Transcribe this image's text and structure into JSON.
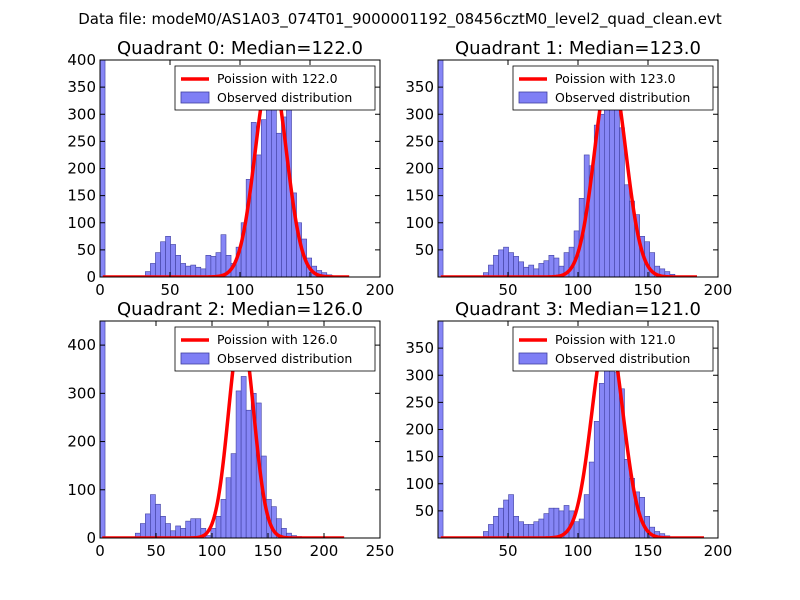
{
  "figure": {
    "suptitle": "Data file: modeM0/AS1A03_074T01_9000001192_08456cztM0_level2_quad_clean.evt"
  },
  "chart_data": [
    {
      "type": "bar",
      "title": "Quadrant 0: Median=122.0",
      "xlim": [
        0,
        200
      ],
      "ylim": [
        0,
        400
      ],
      "xticks": [
        0,
        50,
        100,
        150,
        200
      ],
      "yticks": [
        0,
        50,
        100,
        150,
        200,
        250,
        300,
        350,
        400
      ],
      "bin_width": 3.6,
      "histogram": {
        "name": "Observed distribution",
        "color": "#7f7ff5",
        "x_start": [
          0,
          32.4,
          36,
          39.6,
          43.2,
          46.8,
          50.4,
          54,
          57.6,
          61.2,
          64.8,
          68.4,
          72,
          75.6,
          79.2,
          82.8,
          86.4,
          90,
          93.6,
          97.2,
          100.8,
          104.4,
          108,
          111.6,
          115.2,
          118.8,
          122.4,
          126,
          129.6,
          133.2,
          136.8,
          140.4,
          144,
          147.6,
          151.2,
          154.8,
          158.4,
          162,
          165.6
        ],
        "counts": [
          400,
          10,
          25,
          45,
          65,
          75,
          60,
          40,
          25,
          20,
          22,
          18,
          15,
          40,
          38,
          45,
          78,
          40,
          25,
          55,
          100,
          180,
          285,
          225,
          290,
          315,
          310,
          265,
          295,
          310,
          155,
          100,
          70,
          35,
          20,
          12,
          8,
          4,
          2
        ]
      },
      "curve": {
        "name": "Poission with 122.0",
        "mean": 122.0,
        "peak": 385,
        "x_range": [
          2,
          178
        ],
        "color": "#ff0000"
      }
    },
    {
      "type": "bar",
      "title": "Quadrant 1: Median=123.0",
      "xlim": [
        0,
        200
      ],
      "ylim": [
        0,
        400
      ],
      "xticks": [
        50,
        100,
        150,
        200
      ],
      "yticks": [
        50,
        100,
        150,
        200,
        250,
        300,
        350
      ],
      "bin_width": 3.6,
      "histogram": {
        "name": "Observed distribution",
        "color": "#7f7ff5",
        "x_start": [
          0,
          32.4,
          36,
          39.6,
          43.2,
          46.8,
          50.4,
          54,
          57.6,
          61.2,
          64.8,
          68.4,
          72,
          75.6,
          79.2,
          82.8,
          86.4,
          90,
          93.6,
          97.2,
          100.8,
          104.4,
          108,
          111.6,
          115.2,
          118.8,
          122.4,
          126,
          129.6,
          133.2,
          136.8,
          140.4,
          144,
          147.6,
          151.2,
          154.8,
          158.4,
          162,
          165.6
        ],
        "counts": [
          400,
          8,
          22,
          40,
          50,
          55,
          45,
          38,
          28,
          18,
          22,
          15,
          25,
          30,
          40,
          35,
          20,
          45,
          55,
          85,
          145,
          225,
          205,
          280,
          300,
          320,
          340,
          370,
          275,
          170,
          140,
          115,
          75,
          65,
          45,
          20,
          15,
          10,
          5
        ]
      },
      "curve": {
        "name": "Poission with 123.0",
        "mean": 123.0,
        "peak": 385,
        "x_range": [
          2,
          185
        ],
        "color": "#ff0000"
      }
    },
    {
      "type": "bar",
      "title": "Quadrant 2: Median=126.0",
      "xlim": [
        0,
        250
      ],
      "ylim": [
        0,
        450
      ],
      "xticks": [
        0,
        50,
        100,
        150,
        200,
        250
      ],
      "yticks": [
        0,
        100,
        200,
        300,
        400
      ],
      "bin_width": 4.5,
      "histogram": {
        "name": "Observed distribution",
        "color": "#7f7ff5",
        "x_start": [
          0,
          31.5,
          36,
          40.5,
          45,
          49.5,
          54,
          58.5,
          63,
          67.5,
          72,
          76.5,
          81,
          85.5,
          90,
          94.5,
          99,
          103.5,
          108,
          112.5,
          117,
          121.5,
          126,
          130.5,
          135,
          139.5,
          144,
          148.5,
          153,
          157.5,
          162,
          166.5,
          171,
          175.5,
          180
        ],
        "counts": [
          450,
          10,
          30,
          50,
          90,
          70,
          45,
          30,
          15,
          25,
          20,
          35,
          40,
          40,
          20,
          5,
          20,
          45,
          80,
          125,
          175,
          305,
          335,
          265,
          300,
          280,
          170,
          80,
          65,
          40,
          20,
          10,
          5,
          3,
          2
        ]
      },
      "curve": {
        "name": "Poission with 126.0",
        "mean": 126.0,
        "peak": 432,
        "x_range": [
          2,
          218
        ],
        "color": "#ff0000"
      }
    },
    {
      "type": "bar",
      "title": "Quadrant 3: Median=121.0",
      "xlim": [
        0,
        200
      ],
      "ylim": [
        0,
        400
      ],
      "xticks": [
        50,
        100,
        150,
        200
      ],
      "yticks": [
        50,
        100,
        150,
        200,
        250,
        300,
        350
      ],
      "bin_width": 3.6,
      "histogram": {
        "name": "Observed distribution",
        "color": "#7f7ff5",
        "x_start": [
          0,
          32.4,
          36,
          39.6,
          43.2,
          46.8,
          50.4,
          54,
          57.6,
          61.2,
          64.8,
          68.4,
          72,
          75.6,
          79.2,
          82.8,
          86.4,
          90,
          93.6,
          97.2,
          100.8,
          104.4,
          108,
          111.6,
          115.2,
          118.8,
          122.4,
          126,
          129.6,
          133.2,
          136.8,
          140.4,
          144,
          147.6,
          151.2,
          154.8,
          158.4,
          162,
          165.6
        ],
        "counts": [
          400,
          12,
          25,
          40,
          55,
          70,
          80,
          40,
          30,
          25,
          25,
          30,
          35,
          45,
          55,
          55,
          50,
          60,
          50,
          30,
          35,
          80,
          140,
          215,
          285,
          335,
          365,
          305,
          275,
          145,
          110,
          85,
          75,
          40,
          20,
          12,
          8,
          4,
          2
        ]
      },
      "curve": {
        "name": "Poission with 121.0",
        "mean": 121.0,
        "peak": 385,
        "x_range": [
          2,
          190
        ],
        "color": "#ff0000"
      }
    }
  ]
}
